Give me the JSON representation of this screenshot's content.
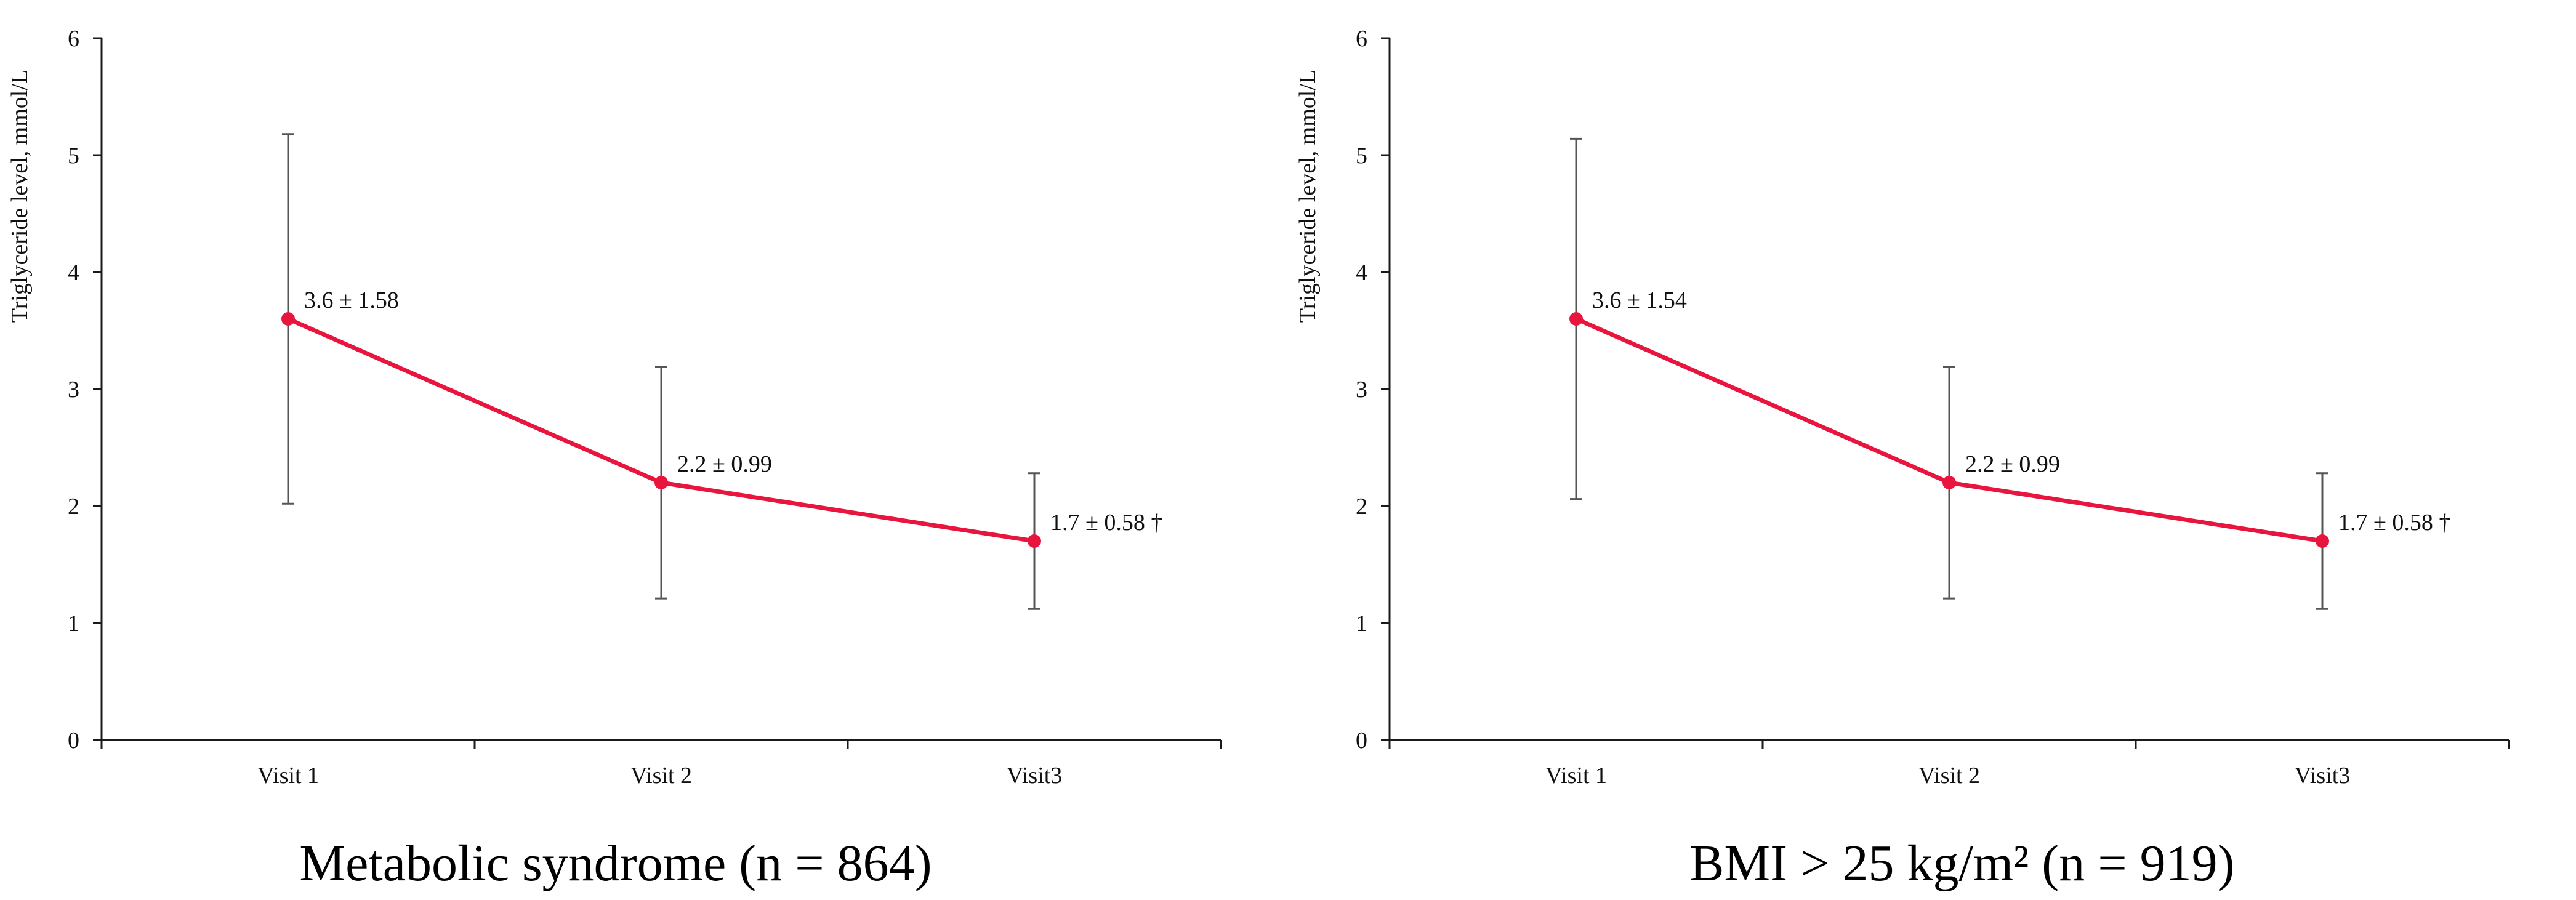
{
  "chart_data": [
    {
      "type": "line",
      "title": "Metabolic syndrome (n = 864)",
      "xlabel": "",
      "ylabel": "Triglyceride level, mmol/L",
      "ylim": [
        0,
        6
      ],
      "yticks": [
        "0",
        "1",
        "2",
        "3",
        "4",
        "5",
        "6"
      ],
      "categories": [
        "Visit 1",
        "Visit 2",
        "Visit3"
      ],
      "series": [
        {
          "name": "Triglyceride level",
          "values": [
            3.6,
            2.2,
            1.7
          ],
          "error": [
            1.58,
            0.99,
            0.58
          ],
          "labels": [
            "3.6 ± 1.58",
            "2.2 ± 0.99",
            "1.7 ± 0.58 †"
          ]
        }
      ],
      "grid": false,
      "color": "#e8163f"
    },
    {
      "type": "line",
      "title": "BMI > 25 kg/m² (n = 919)",
      "xlabel": "",
      "ylabel": "Triglyceride level, mmol/L",
      "ylim": [
        0,
        6
      ],
      "yticks": [
        "0",
        "1",
        "2",
        "3",
        "4",
        "5",
        "6"
      ],
      "categories": [
        "Visit 1",
        "Visit 2",
        "Visit3"
      ],
      "series": [
        {
          "name": "Triglyceride level",
          "values": [
            3.6,
            2.2,
            1.7
          ],
          "error": [
            1.54,
            0.99,
            0.58
          ],
          "labels": [
            "3.6 ± 1.54",
            "2.2 ± 0.99",
            "1.7 ± 0.58 †"
          ]
        }
      ],
      "grid": false,
      "color": "#e8163f"
    }
  ]
}
